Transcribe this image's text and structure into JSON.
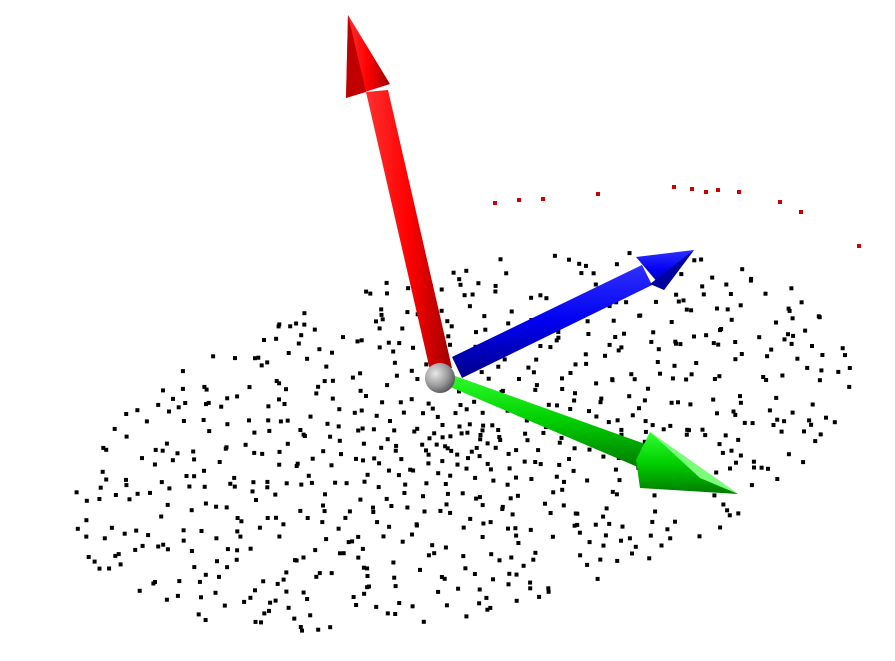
{
  "viewer": {
    "background": "#ffffff",
    "point_color": "#000000",
    "highlight_point_color": "#cc0000"
  },
  "axes": [
    {
      "name": "red-axis-arrow",
      "color": "#ff0000",
      "shade": "#b00000"
    },
    {
      "name": "green-axis-arrow",
      "color": "#00e000",
      "shade": "#009000"
    },
    {
      "name": "blue-axis-arrow",
      "color": "#0000ff",
      "shade": "#0000a0"
    }
  ],
  "origin_sphere": {
    "color": "#9a9a9a"
  }
}
